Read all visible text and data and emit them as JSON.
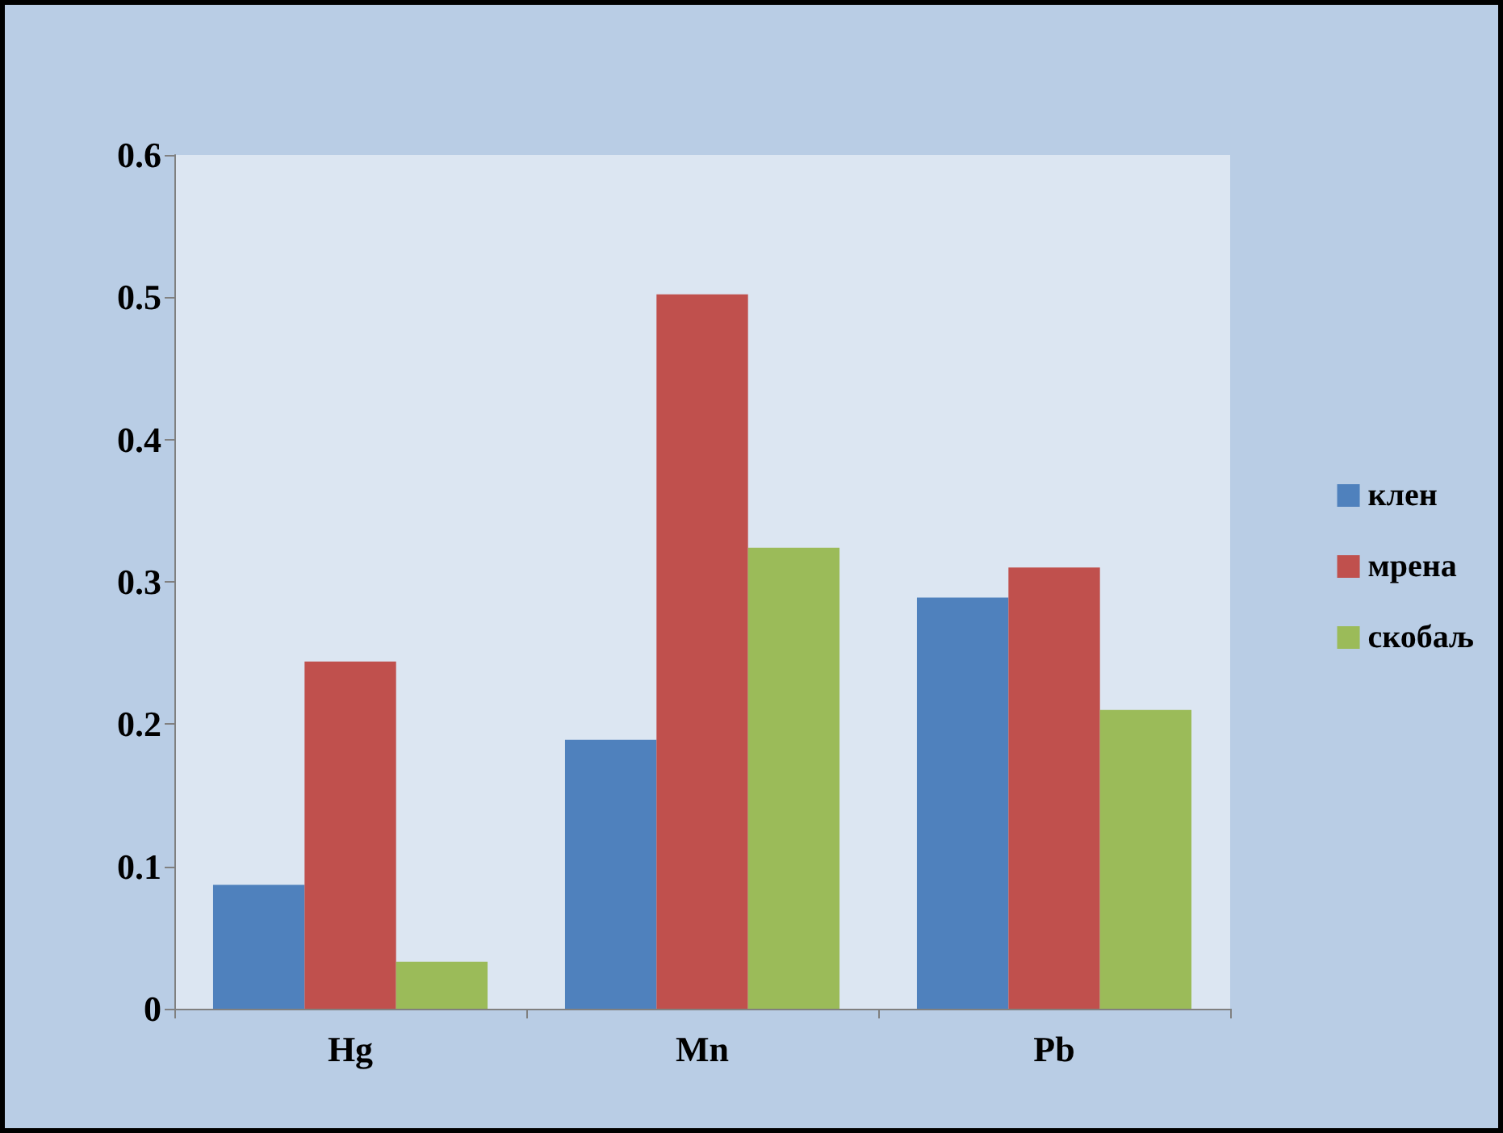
{
  "chart_data": {
    "type": "bar",
    "categories": [
      "Hg",
      "Mn",
      "Pb"
    ],
    "series": [
      {
        "name": "клен",
        "color": "#4f81bd",
        "values": [
          0.087,
          0.189,
          0.289
        ]
      },
      {
        "name": "мрена",
        "color": "#c0504d",
        "values": [
          0.244,
          0.502,
          0.31
        ]
      },
      {
        "name": "скобаљ",
        "color": "#9bbb59",
        "values": [
          0.033,
          0.324,
          0.21
        ]
      }
    ],
    "ylim": [
      0,
      0.6
    ],
    "yticks": [
      0,
      0.1,
      0.2,
      0.3,
      0.4,
      0.5,
      0.6
    ],
    "grid": false,
    "legend": "right"
  }
}
